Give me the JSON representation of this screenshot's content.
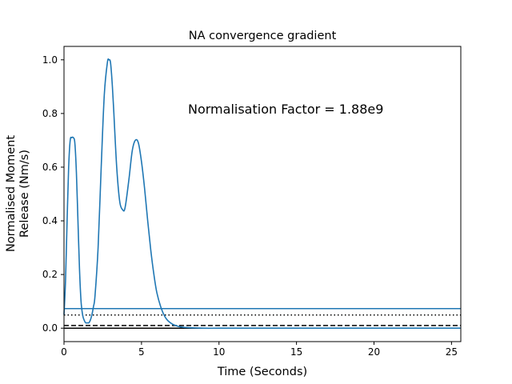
{
  "chart_data": {
    "type": "line",
    "title": "NA convergence gradient",
    "xlabel": "Time (Seconds)",
    "ylabel_lines": [
      "Normalised Moment",
      "Release (Nm/s)"
    ],
    "xlim": [
      0,
      25.6
    ],
    "ylim": [
      -0.05,
      1.05
    ],
    "xticks": [
      0,
      5,
      10,
      15,
      20,
      25
    ],
    "xtick_labels": [
      "0",
      "5",
      "10",
      "15",
      "20",
      "25"
    ],
    "yticks": [
      0.0,
      0.2,
      0.4,
      0.6,
      0.8,
      1.0
    ],
    "ytick_labels": [
      "0.0",
      "0.2",
      "0.4",
      "0.6",
      "0.8",
      "1.0"
    ],
    "grid": false,
    "annotation": "Normalisation Factor = 1.88e9",
    "series": [
      {
        "color": "#1f77b4",
        "x": [
          0,
          0.1,
          0.2,
          0.3,
          0.4,
          0.5,
          0.6,
          0.7,
          0.8,
          0.9,
          1.0,
          1.1,
          1.2,
          1.3,
          1.4,
          1.5,
          1.6,
          1.7,
          1.8,
          1.9,
          2.0,
          2.2,
          2.4,
          2.6,
          2.8,
          2.9,
          3.0,
          3.1,
          3.2,
          3.4,
          3.6,
          3.8,
          3.9,
          4.0,
          4.2,
          4.4,
          4.6,
          4.8,
          5.0,
          5.2,
          5.4,
          5.6,
          5.8,
          6.0,
          6.3,
          6.6,
          7.0,
          7.5,
          8.0,
          9.0,
          10.0,
          12.0,
          15.0,
          20.0,
          25.6
        ],
        "y": [
          0.05,
          0.18,
          0.4,
          0.6,
          0.7,
          0.71,
          0.71,
          0.69,
          0.58,
          0.4,
          0.22,
          0.1,
          0.05,
          0.03,
          0.02,
          0.02,
          0.02,
          0.03,
          0.05,
          0.08,
          0.12,
          0.3,
          0.6,
          0.87,
          0.99,
          1.0,
          0.99,
          0.92,
          0.82,
          0.6,
          0.47,
          0.44,
          0.44,
          0.47,
          0.56,
          0.66,
          0.7,
          0.69,
          0.62,
          0.52,
          0.4,
          0.29,
          0.2,
          0.13,
          0.07,
          0.035,
          0.015,
          0.005,
          0.002,
          0.0,
          0.0,
          0.0,
          0.0,
          0.0,
          0.0
        ]
      }
    ],
    "hlines": [
      {
        "y": 0.073,
        "style": "solid",
        "color": "#1f77b4"
      },
      {
        "y": 0.049,
        "style": "dotted",
        "color": "#000000"
      },
      {
        "y": 0.01,
        "style": "dashed",
        "color": "#000000"
      },
      {
        "y": 0.0,
        "style": "solid",
        "color": "#000000"
      }
    ]
  }
}
